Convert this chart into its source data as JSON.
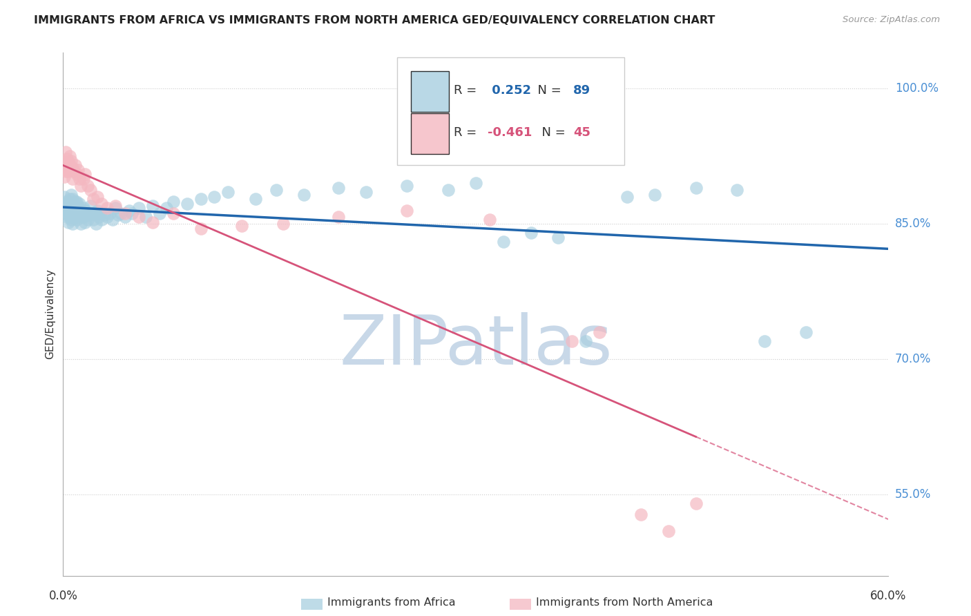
{
  "title": "IMMIGRANTS FROM AFRICA VS IMMIGRANTS FROM NORTH AMERICA GED/EQUIVALENCY CORRELATION CHART",
  "source": "Source: ZipAtlas.com",
  "ylabel": "GED/Equivalency",
  "legend_blue_r": "0.252",
  "legend_blue_n": "89",
  "legend_pink_r": "-0.461",
  "legend_pink_n": "45",
  "blue_color": "#a8cfe0",
  "pink_color": "#f4b8c1",
  "blue_line_color": "#2166ac",
  "pink_line_color": "#d6537a",
  "blue_scatter_x": [
    0.001,
    0.001,
    0.002,
    0.002,
    0.002,
    0.003,
    0.003,
    0.003,
    0.004,
    0.004,
    0.004,
    0.005,
    0.005,
    0.005,
    0.006,
    0.006,
    0.006,
    0.006,
    0.007,
    0.007,
    0.007,
    0.008,
    0.008,
    0.009,
    0.009,
    0.01,
    0.01,
    0.01,
    0.011,
    0.011,
    0.012,
    0.012,
    0.013,
    0.013,
    0.014,
    0.015,
    0.015,
    0.016,
    0.016,
    0.017,
    0.018,
    0.019,
    0.02,
    0.021,
    0.022,
    0.023,
    0.024,
    0.025,
    0.026,
    0.027,
    0.028,
    0.03,
    0.032,
    0.034,
    0.036,
    0.038,
    0.04,
    0.042,
    0.045,
    0.048,
    0.05,
    0.055,
    0.06,
    0.065,
    0.07,
    0.075,
    0.08,
    0.09,
    0.1,
    0.11,
    0.12,
    0.14,
    0.155,
    0.175,
    0.2,
    0.22,
    0.25,
    0.28,
    0.3,
    0.32,
    0.34,
    0.36,
    0.38,
    0.41,
    0.43,
    0.46,
    0.49,
    0.51,
    0.54
  ],
  "blue_scatter_y": [
    0.87,
    0.88,
    0.868,
    0.875,
    0.862,
    0.872,
    0.865,
    0.858,
    0.875,
    0.86,
    0.852,
    0.878,
    0.87,
    0.858,
    0.882,
    0.872,
    0.865,
    0.855,
    0.878,
    0.865,
    0.85,
    0.87,
    0.858,
    0.875,
    0.862,
    0.875,
    0.865,
    0.855,
    0.87,
    0.858,
    0.872,
    0.86,
    0.865,
    0.85,
    0.858,
    0.868,
    0.858,
    0.865,
    0.852,
    0.862,
    0.855,
    0.86,
    0.87,
    0.862,
    0.855,
    0.862,
    0.85,
    0.865,
    0.858,
    0.862,
    0.855,
    0.86,
    0.858,
    0.862,
    0.855,
    0.868,
    0.86,
    0.862,
    0.858,
    0.865,
    0.862,
    0.868,
    0.858,
    0.87,
    0.862,
    0.868,
    0.875,
    0.872,
    0.878,
    0.88,
    0.885,
    0.878,
    0.888,
    0.882,
    0.89,
    0.885,
    0.892,
    0.888,
    0.895,
    0.83,
    0.84,
    0.835,
    0.72,
    0.88,
    0.882,
    0.89,
    0.888,
    0.72,
    0.73
  ],
  "pink_scatter_x": [
    0.001,
    0.001,
    0.002,
    0.002,
    0.002,
    0.003,
    0.003,
    0.004,
    0.004,
    0.005,
    0.005,
    0.006,
    0.006,
    0.007,
    0.007,
    0.008,
    0.009,
    0.01,
    0.011,
    0.012,
    0.013,
    0.015,
    0.016,
    0.018,
    0.02,
    0.022,
    0.025,
    0.028,
    0.032,
    0.038,
    0.045,
    0.055,
    0.065,
    0.08,
    0.1,
    0.13,
    0.16,
    0.2,
    0.25,
    0.31,
    0.37,
    0.39,
    0.42,
    0.44,
    0.46
  ],
  "pink_scatter_y": [
    0.91,
    0.902,
    0.93,
    0.918,
    0.908,
    0.922,
    0.912,
    0.918,
    0.908,
    0.925,
    0.915,
    0.92,
    0.912,
    0.912,
    0.9,
    0.908,
    0.915,
    0.905,
    0.91,
    0.9,
    0.892,
    0.9,
    0.905,
    0.892,
    0.888,
    0.878,
    0.88,
    0.872,
    0.868,
    0.87,
    0.862,
    0.858,
    0.852,
    0.862,
    0.845,
    0.848,
    0.85,
    0.858,
    0.865,
    0.855,
    0.72,
    0.73,
    0.528,
    0.51,
    0.54
  ],
  "xlim": [
    0.0,
    0.6
  ],
  "ylim": [
    0.46,
    1.04
  ],
  "ytick_vals": [
    1.0,
    0.85,
    0.7,
    0.55
  ],
  "ytick_labels": [
    "100.0%",
    "85.0%",
    "70.0%",
    "55.0%"
  ],
  "watermark_color": "#c8d8e8",
  "background_color": "#ffffff",
  "grid_color": "#cccccc"
}
